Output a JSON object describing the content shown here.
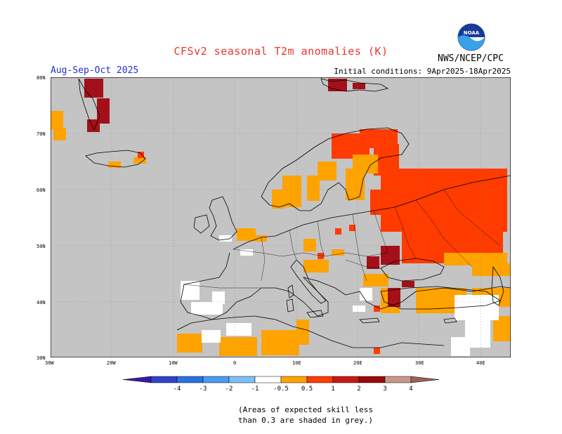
{
  "header": {
    "title": "CFSv2 seasonal T2m anomalies (K)",
    "period": "Aug-Sep-Oct 2025",
    "initial_conditions": "Initial conditions: 9Apr2025-18Apr2025",
    "agency": "NWS/NCEP/CPC",
    "logo_text": "NOAA"
  },
  "axes": {
    "lat_labels": [
      "80N",
      "70N",
      "60N",
      "50N",
      "40N",
      "30N"
    ],
    "lon_labels": [
      "30W",
      "20W",
      "10W",
      "0",
      "10E",
      "20E",
      "30E",
      "40E"
    ]
  },
  "colorbar": {
    "labels": [
      "-4",
      "-3",
      "-2",
      "-1",
      "-0.5",
      "0.5",
      "1",
      "2",
      "3",
      "4"
    ],
    "colors": [
      "#3a18a8",
      "#2f44c8",
      "#2a72e0",
      "#4a9cf0",
      "#7cc0f8",
      "#ffffff",
      "#ffa300",
      "#ff3b00",
      "#c81a14",
      "#9a0a0a",
      "#c8988a",
      "#a0605a"
    ]
  },
  "legend_note": {
    "line1": "(Areas of expected skill less",
    "line2": "than 0.3 are shaded in grey.)"
  },
  "map_colors": {
    "grey": "#c4c4c4",
    "orange": "#ffa300",
    "red": "#ff3b00",
    "darkred": "#a4101a",
    "white": "#ffffff"
  }
}
